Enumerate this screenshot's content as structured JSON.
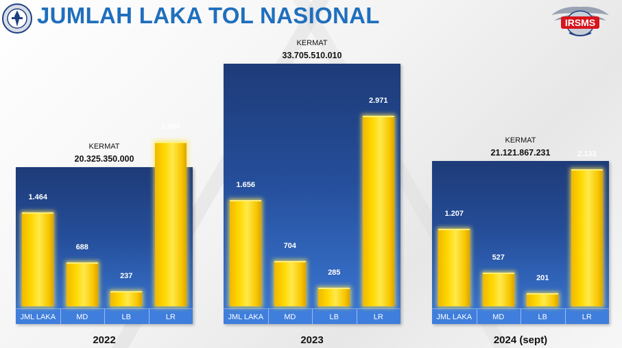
{
  "header": {
    "title": "JUMLAH LAKA TOL NASIONAL",
    "right_logo_text": "IRSMS"
  },
  "colors": {
    "title": "#1f6fbd",
    "panel_top": "#1e3b78",
    "panel_bottom": "#3b79d6",
    "bar": "#ffd800"
  },
  "chart_data": [
    {
      "type": "bar",
      "annotation_label": "KERMAT",
      "annotation_value": "20.325.350.000",
      "categories": [
        "JML LAKA",
        "MD",
        "LB",
        "LR"
      ],
      "values": [
        1464,
        688,
        237,
        2564
      ],
      "value_labels": [
        "1.464",
        "688",
        "237",
        "2.564"
      ],
      "xlabel": "2022"
    },
    {
      "type": "bar",
      "annotation_label": "KERMAT",
      "annotation_value": "33.705.510.010",
      "categories": [
        "JML LAKA",
        "MD",
        "LB",
        "LR"
      ],
      "values": [
        1656,
        704,
        285,
        2971
      ],
      "value_labels": [
        "1.656",
        "704",
        "285",
        "2.971"
      ],
      "xlabel": "2023"
    },
    {
      "type": "bar",
      "annotation_label": "KERMAT",
      "annotation_value": "21.121.867.231",
      "categories": [
        "JML LAKA",
        "MD",
        "LB",
        "LR"
      ],
      "values": [
        1207,
        527,
        201,
        2133
      ],
      "value_labels": [
        "1.207",
        "527",
        "201",
        "2.133"
      ],
      "xlabel": "2024 (sept)"
    }
  ]
}
